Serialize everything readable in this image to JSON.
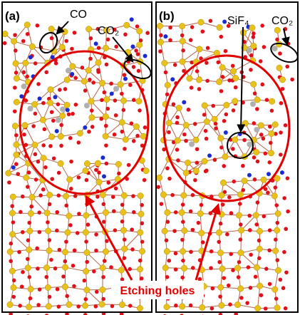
{
  "panels": [
    {
      "label": "(a)"
    },
    {
      "label": "(b)"
    }
  ],
  "annotations": {
    "a_co": "CO",
    "a_co2": "CO₂",
    "b_sif4": "SiF₄",
    "b_co2": "CO₂",
    "etching_holes": "Etching holes"
  }
}
